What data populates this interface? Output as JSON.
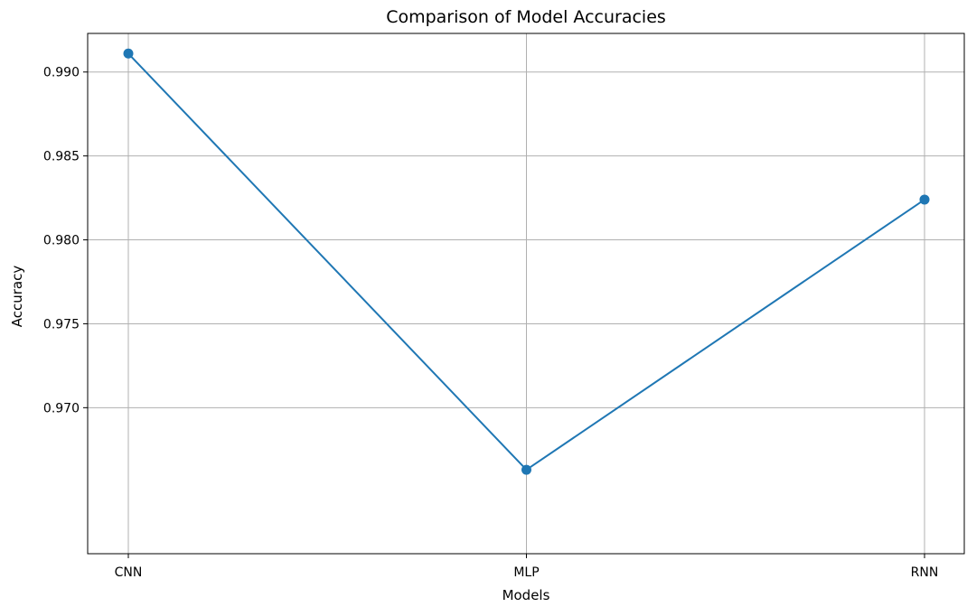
{
  "chart_data": {
    "type": "line",
    "title": "Comparison of Model Accuracies",
    "xlabel": "Models",
    "ylabel": "Accuracy",
    "categories": [
      "CNN",
      "MLP",
      "RNN"
    ],
    "series": [
      {
        "values": [
          0.9911,
          0.9663,
          0.9824
        ],
        "color": "#1f77b4",
        "marker": "circle"
      }
    ],
    "ylim": [
      0.9613,
      0.9923
    ],
    "yticks": [
      0.97,
      0.975,
      0.98,
      0.985,
      0.99
    ],
    "ytick_labels": [
      "0.970",
      "0.975",
      "0.980",
      "0.985",
      "0.990"
    ],
    "grid": true,
    "legend": "none"
  }
}
